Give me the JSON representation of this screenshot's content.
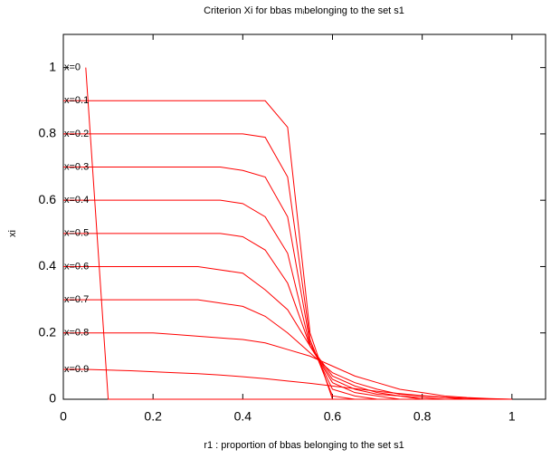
{
  "chart_data": {
    "type": "line",
    "title": "Criterion Xi for bbas mᵢbelonging to the set s1",
    "x_label": "r1 : proportion of bbas belonging to the set s1",
    "y_label": "xi",
    "x": [
      0,
      0.05,
      0.1,
      0.15,
      0.2,
      0.25,
      0.3,
      0.35,
      0.4,
      0.45,
      0.5,
      0.55,
      0.6,
      0.65,
      0.7,
      0.75,
      0.8,
      0.85,
      0.9,
      0.95,
      1
    ],
    "xlim": [
      0,
      1.075
    ],
    "ylim": [
      0,
      1.1
    ],
    "xticks": [
      0,
      0.2,
      0.4,
      0.6,
      0.8,
      1
    ],
    "yticks": [
      0,
      0.2,
      0.4,
      0.6,
      0.8,
      1
    ],
    "series": [
      {
        "name": "x=0",
        "color": "#ff0000",
        "values": [
          null,
          1,
          0,
          0,
          0,
          0,
          0,
          0,
          0,
          0,
          0,
          0,
          0,
          0,
          0,
          0,
          0,
          0,
          0,
          0,
          0
        ]
      },
      {
        "name": "x=0.1",
        "color": "#ff0000",
        "values": [
          0.9,
          0.9,
          0.9,
          0.9,
          0.9,
          0.9,
          0.9,
          0.9,
          0.9,
          0.9,
          0.82,
          0.2,
          0,
          0,
          0,
          0,
          0,
          0,
          0,
          0,
          0
        ]
      },
      {
        "name": "x=0.2",
        "color": "#ff0000",
        "values": [
          0.8,
          0.8,
          0.8,
          0.8,
          0.8,
          0.8,
          0.8,
          0.8,
          0.8,
          0.79,
          0.67,
          0.18,
          0.01,
          0,
          0,
          0,
          0,
          0,
          0,
          0,
          0
        ]
      },
      {
        "name": "x=0.3",
        "color": "#ff0000",
        "values": [
          0.7,
          0.7,
          0.7,
          0.7,
          0.7,
          0.7,
          0.7,
          0.7,
          0.69,
          0.67,
          0.55,
          0.17,
          0.03,
          0.01,
          0,
          0,
          0,
          0,
          0,
          0,
          0
        ]
      },
      {
        "name": "x=0.4",
        "color": "#ff0000",
        "values": [
          0.6,
          0.6,
          0.6,
          0.6,
          0.6,
          0.6,
          0.6,
          0.6,
          0.59,
          0.55,
          0.44,
          0.16,
          0.05,
          0.02,
          0.01,
          0,
          0,
          0,
          0,
          0,
          0
        ]
      },
      {
        "name": "x=0.5",
        "color": "#ff0000",
        "values": [
          0.5,
          0.5,
          0.5,
          0.5,
          0.5,
          0.5,
          0.5,
          0.5,
          0.49,
          0.45,
          0.35,
          0.16,
          0.06,
          0.03,
          0.015,
          0.01,
          0,
          0,
          0,
          0,
          0
        ]
      },
      {
        "name": "x=0.6",
        "color": "#ff0000",
        "values": [
          0.4,
          0.4,
          0.4,
          0.4,
          0.4,
          0.4,
          0.4,
          0.39,
          0.38,
          0.33,
          0.27,
          0.16,
          0.07,
          0.04,
          0.02,
          0.01,
          0.005,
          0,
          0,
          0,
          0
        ]
      },
      {
        "name": "x=0.7",
        "color": "#ff0000",
        "values": [
          0.3,
          0.3,
          0.3,
          0.3,
          0.3,
          0.3,
          0.3,
          0.29,
          0.28,
          0.25,
          0.2,
          0.14,
          0.08,
          0.05,
          0.03,
          0.015,
          0.01,
          0.005,
          0,
          0,
          0
        ]
      },
      {
        "name": "x=0.8",
        "color": "#ff0000",
        "values": [
          0.2,
          0.2,
          0.2,
          0.2,
          0.2,
          0.195,
          0.19,
          0.185,
          0.18,
          0.17,
          0.15,
          0.13,
          0.1,
          0.07,
          0.05,
          0.03,
          0.02,
          0.01,
          0.005,
          0.002,
          0
        ]
      },
      {
        "name": "x=0.9",
        "color": "#ff0000",
        "values": [
          0.09,
          0.09,
          0.088,
          0.086,
          0.083,
          0.08,
          0.077,
          0.073,
          0.068,
          0.062,
          0.055,
          0.048,
          0.04,
          0.032,
          0.024,
          0.017,
          0.011,
          0.006,
          0.003,
          0.001,
          0
        ]
      }
    ]
  }
}
